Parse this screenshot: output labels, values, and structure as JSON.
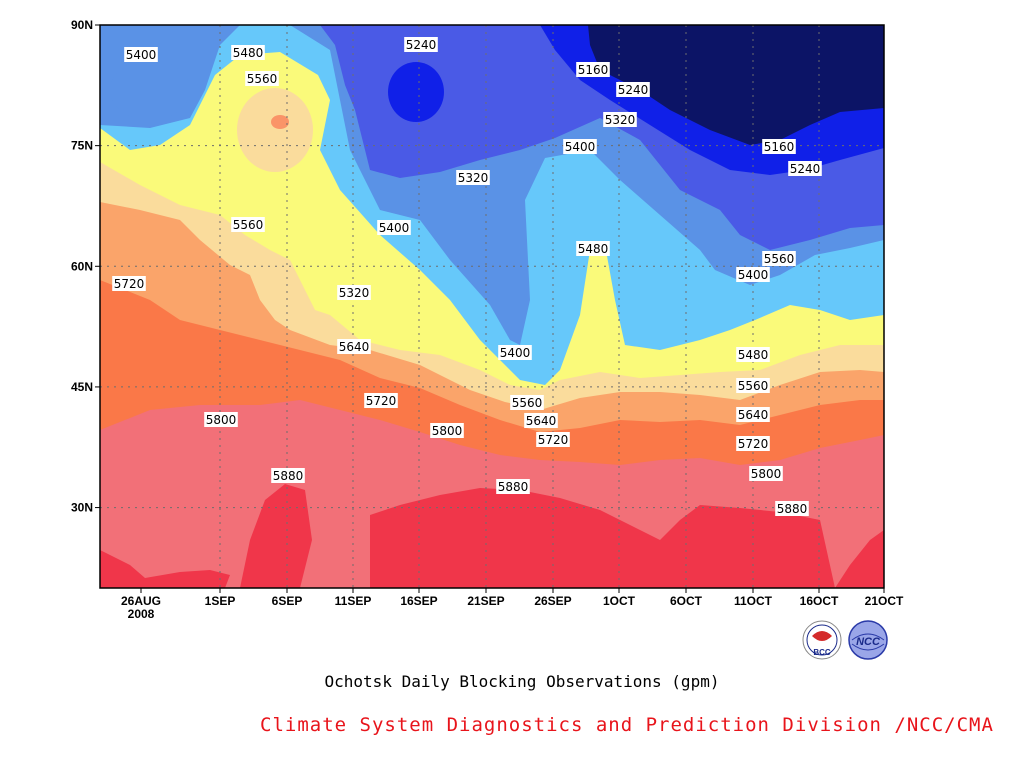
{
  "chart_data": {
    "type": "contour",
    "title": "Ochotsk Daily Blocking Observations (gpm)",
    "credit": "Climate System Diagnostics and Prediction Division /NCC/CMA",
    "xlabel": "",
    "ylabel": "",
    "x_ticks": [
      "26AUG",
      "1SEP",
      "6SEP",
      "11SEP",
      "16SEP",
      "21SEP",
      "26SEP",
      "1OCT",
      "6OCT",
      "11OCT",
      "16OCT",
      "21OCT"
    ],
    "x_tick_year": "2008",
    "y_ticks": [
      "30N",
      "45N",
      "60N",
      "75N",
      "90N"
    ],
    "y_range_deg": [
      20,
      90
    ],
    "grid": true,
    "levels_gpm": [
      5160,
      5240,
      5320,
      5400,
      5480,
      5560,
      5640,
      5720,
      5800,
      5880
    ],
    "fill_colors": [
      "#0c1466",
      "#1020e8",
      "#4a5ae6",
      "#5a92e6",
      "#66c8fa",
      "#fafa7a",
      "#fadc9c",
      "#faa46a",
      "#fa7848",
      "#f27078",
      "#f0364a"
    ],
    "contour_labels": [
      "5400",
      "5480",
      "5560",
      "5240",
      "5160",
      "5240",
      "5320",
      "5400",
      "5320",
      "5160",
      "5240",
      "5560",
      "5400",
      "5480",
      "5720",
      "5560",
      "5400",
      "5320",
      "5400",
      "5640",
      "5480",
      "5560",
      "5720",
      "5560",
      "5800",
      "5640",
      "5800",
      "5640",
      "5720",
      "5720",
      "5880",
      "5880",
      "5800",
      "5880"
    ],
    "logos": [
      "BCC",
      "NCC"
    ]
  }
}
